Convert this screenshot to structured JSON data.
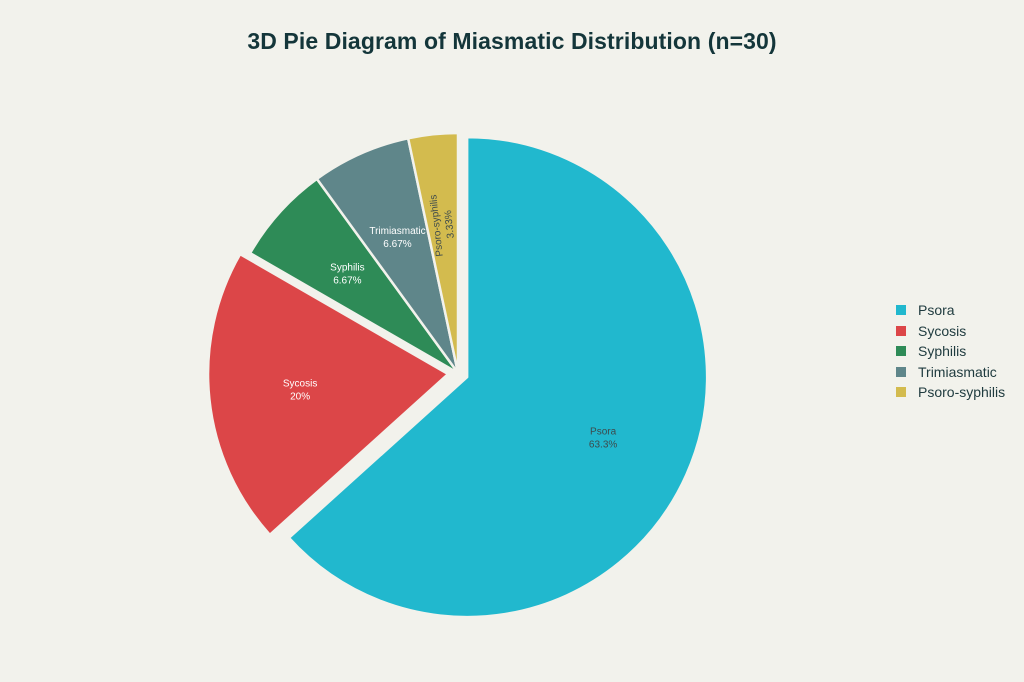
{
  "chart_data": {
    "type": "pie",
    "title": "3D Pie Diagram of Miasmatic Distribution (n=30)",
    "slices": [
      {
        "name": "Psora",
        "value": 63.3,
        "label": "63.3%",
        "color": "#21b8ce",
        "pulled": true
      },
      {
        "name": "Sycosis",
        "value": 20,
        "label": "20%",
        "color": "#dc4648",
        "pulled": true
      },
      {
        "name": "Syphilis",
        "value": 6.67,
        "label": "6.67%",
        "color": "#2e8b57",
        "pulled": false
      },
      {
        "name": "Trimiasmatic",
        "value": 6.67,
        "label": "6.67%",
        "color": "#5f868a",
        "pulled": false
      },
      {
        "name": "Psoro-syphilis",
        "value": 3.33,
        "label": "3.33%",
        "color": "#d3bb4e",
        "pulled": false
      }
    ],
    "legend_position": "right",
    "start_angle": "12 o'clock",
    "direction": "clockwise"
  }
}
